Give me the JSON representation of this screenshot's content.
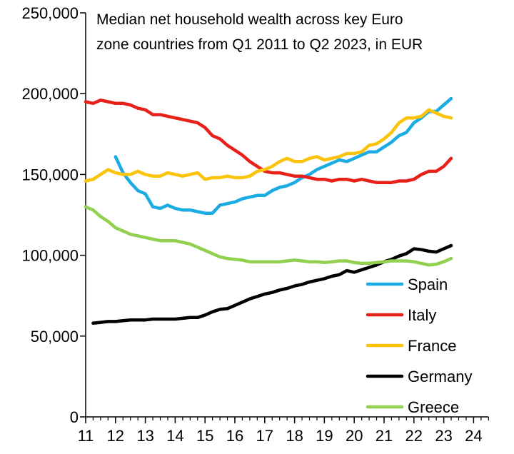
{
  "chart_data": {
    "type": "line",
    "title_lines": [
      "Median net household wealth across key Euro",
      "zone countries from Q1 2011 to Q2 2023, in EUR"
    ],
    "xlabel": "",
    "ylabel": "",
    "xlim": [
      11,
      24.5
    ],
    "ylim": [
      0,
      250000
    ],
    "x_ticks": [
      11,
      12,
      13,
      14,
      15,
      16,
      17,
      18,
      19,
      20,
      21,
      22,
      23,
      24
    ],
    "x_tick_labels": [
      "11",
      "12",
      "13",
      "14",
      "15",
      "16",
      "17",
      "18",
      "19",
      "20",
      "21",
      "22",
      "23",
      "24"
    ],
    "y_ticks": [
      0,
      50000,
      100000,
      150000,
      200000,
      250000
    ],
    "y_tick_labels": [
      "0",
      "50,000",
      "100,000",
      "150,000",
      "200,000",
      "250,000"
    ],
    "grid": false,
    "legend_position": "bottom-right",
    "series": [
      {
        "name": "Spain",
        "color": "#1AACE3",
        "points": [
          [
            12.0,
            161000
          ],
          [
            12.25,
            151000
          ],
          [
            12.5,
            145000
          ],
          [
            12.75,
            140000
          ],
          [
            13.0,
            138000
          ],
          [
            13.25,
            130000
          ],
          [
            13.5,
            129000
          ],
          [
            13.75,
            131000
          ],
          [
            14.0,
            129000
          ],
          [
            14.25,
            128000
          ],
          [
            14.5,
            128000
          ],
          [
            14.75,
            127000
          ],
          [
            15.0,
            126000
          ],
          [
            15.25,
            126000
          ],
          [
            15.5,
            131000
          ],
          [
            15.75,
            132000
          ],
          [
            16.0,
            133000
          ],
          [
            16.25,
            135000
          ],
          [
            16.5,
            136000
          ],
          [
            16.75,
            137000
          ],
          [
            17.0,
            137000
          ],
          [
            17.25,
            140000
          ],
          [
            17.5,
            142000
          ],
          [
            17.75,
            143000
          ],
          [
            18.0,
            145000
          ],
          [
            18.25,
            148000
          ],
          [
            18.5,
            150000
          ],
          [
            18.75,
            153000
          ],
          [
            19.0,
            155000
          ],
          [
            19.25,
            157000
          ],
          [
            19.5,
            159000
          ],
          [
            19.75,
            158000
          ],
          [
            20.0,
            160000
          ],
          [
            20.25,
            162000
          ],
          [
            20.5,
            164000
          ],
          [
            20.75,
            164000
          ],
          [
            21.0,
            167000
          ],
          [
            21.25,
            170000
          ],
          [
            21.5,
            174000
          ],
          [
            21.75,
            176000
          ],
          [
            22.0,
            182000
          ],
          [
            22.25,
            185000
          ],
          [
            22.5,
            189000
          ],
          [
            22.75,
            189000
          ],
          [
            23.0,
            193000
          ],
          [
            23.25,
            197000
          ]
        ]
      },
      {
        "name": "Italy",
        "color": "#E8201A",
        "points": [
          [
            11.0,
            195000
          ],
          [
            11.25,
            194000
          ],
          [
            11.5,
            196000
          ],
          [
            11.75,
            195000
          ],
          [
            12.0,
            194000
          ],
          [
            12.25,
            194000
          ],
          [
            12.5,
            193000
          ],
          [
            12.75,
            191000
          ],
          [
            13.0,
            190000
          ],
          [
            13.25,
            187000
          ],
          [
            13.5,
            187000
          ],
          [
            13.75,
            186000
          ],
          [
            14.0,
            185000
          ],
          [
            14.25,
            184000
          ],
          [
            14.5,
            183000
          ],
          [
            14.75,
            182000
          ],
          [
            15.0,
            179000
          ],
          [
            15.25,
            174000
          ],
          [
            15.5,
            172000
          ],
          [
            15.75,
            168000
          ],
          [
            16.0,
            165000
          ],
          [
            16.25,
            162000
          ],
          [
            16.5,
            158000
          ],
          [
            16.75,
            155000
          ],
          [
            17.0,
            152000
          ],
          [
            17.25,
            151000
          ],
          [
            17.5,
            151000
          ],
          [
            17.75,
            150000
          ],
          [
            18.0,
            149000
          ],
          [
            18.25,
            149000
          ],
          [
            18.5,
            148000
          ],
          [
            18.75,
            147000
          ],
          [
            19.0,
            147000
          ],
          [
            19.25,
            146000
          ],
          [
            19.5,
            147000
          ],
          [
            19.75,
            147000
          ],
          [
            20.0,
            146000
          ],
          [
            20.25,
            147000
          ],
          [
            20.5,
            146000
          ],
          [
            20.75,
            145000
          ],
          [
            21.0,
            145000
          ],
          [
            21.25,
            145000
          ],
          [
            21.5,
            146000
          ],
          [
            21.75,
            146000
          ],
          [
            22.0,
            147000
          ],
          [
            22.25,
            150000
          ],
          [
            22.5,
            152000
          ],
          [
            22.75,
            152000
          ],
          [
            23.0,
            155000
          ],
          [
            23.25,
            160000
          ]
        ]
      },
      {
        "name": "France",
        "color": "#FCC30B",
        "points": [
          [
            11.0,
            146000
          ],
          [
            11.25,
            147000
          ],
          [
            11.5,
            150000
          ],
          [
            11.75,
            153000
          ],
          [
            12.0,
            151000
          ],
          [
            12.25,
            150000
          ],
          [
            12.5,
            150000
          ],
          [
            12.75,
            152000
          ],
          [
            13.0,
            150000
          ],
          [
            13.25,
            149000
          ],
          [
            13.5,
            149000
          ],
          [
            13.75,
            151000
          ],
          [
            14.0,
            150000
          ],
          [
            14.25,
            149000
          ],
          [
            14.5,
            150000
          ],
          [
            14.75,
            151000
          ],
          [
            15.0,
            147000
          ],
          [
            15.25,
            148000
          ],
          [
            15.5,
            148000
          ],
          [
            15.75,
            149000
          ],
          [
            16.0,
            148000
          ],
          [
            16.25,
            148000
          ],
          [
            16.5,
            149000
          ],
          [
            16.75,
            152000
          ],
          [
            17.0,
            153000
          ],
          [
            17.25,
            155000
          ],
          [
            17.5,
            158000
          ],
          [
            17.75,
            160000
          ],
          [
            18.0,
            158000
          ],
          [
            18.25,
            158000
          ],
          [
            18.5,
            160000
          ],
          [
            18.75,
            161000
          ],
          [
            19.0,
            159000
          ],
          [
            19.25,
            160000
          ],
          [
            19.5,
            161000
          ],
          [
            19.75,
            163000
          ],
          [
            20.0,
            163000
          ],
          [
            20.25,
            164000
          ],
          [
            20.5,
            168000
          ],
          [
            20.75,
            169000
          ],
          [
            21.0,
            172000
          ],
          [
            21.25,
            176000
          ],
          [
            21.5,
            182000
          ],
          [
            21.75,
            185000
          ],
          [
            22.0,
            185000
          ],
          [
            22.25,
            186000
          ],
          [
            22.5,
            190000
          ],
          [
            22.75,
            188000
          ],
          [
            23.0,
            186000
          ],
          [
            23.25,
            185000
          ]
        ]
      },
      {
        "name": "Germany",
        "color": "#000000",
        "points": [
          [
            11.25,
            58000
          ],
          [
            11.5,
            58500
          ],
          [
            11.75,
            59000
          ],
          [
            12.0,
            59000
          ],
          [
            12.25,
            59500
          ],
          [
            12.5,
            60000
          ],
          [
            12.75,
            60000
          ],
          [
            13.0,
            60000
          ],
          [
            13.25,
            60500
          ],
          [
            13.5,
            60500
          ],
          [
            13.75,
            60500
          ],
          [
            14.0,
            60500
          ],
          [
            14.25,
            61000
          ],
          [
            14.5,
            61500
          ],
          [
            14.75,
            61500
          ],
          [
            15.0,
            63000
          ],
          [
            15.25,
            65000
          ],
          [
            15.5,
            66500
          ],
          [
            15.75,
            67000
          ],
          [
            16.0,
            69000
          ],
          [
            16.25,
            71000
          ],
          [
            16.5,
            73000
          ],
          [
            16.75,
            74500
          ],
          [
            17.0,
            76000
          ],
          [
            17.25,
            77000
          ],
          [
            17.5,
            78500
          ],
          [
            17.75,
            79500
          ],
          [
            18.0,
            81000
          ],
          [
            18.25,
            82000
          ],
          [
            18.5,
            83500
          ],
          [
            18.75,
            84500
          ],
          [
            19.0,
            85500
          ],
          [
            19.25,
            87000
          ],
          [
            19.5,
            88000
          ],
          [
            19.75,
            90500
          ],
          [
            20.0,
            89500
          ],
          [
            20.25,
            91000
          ],
          [
            20.5,
            92500
          ],
          [
            20.75,
            94000
          ],
          [
            21.0,
            96000
          ],
          [
            21.25,
            97500
          ],
          [
            21.5,
            99500
          ],
          [
            21.75,
            101000
          ],
          [
            22.0,
            104000
          ],
          [
            22.25,
            103500
          ],
          [
            22.5,
            102500
          ],
          [
            22.75,
            102000
          ],
          [
            23.0,
            104000
          ],
          [
            23.25,
            106000
          ]
        ]
      },
      {
        "name": "Greece",
        "color": "#92D050",
        "points": [
          [
            11.0,
            130000
          ],
          [
            11.25,
            128000
          ],
          [
            11.5,
            124000
          ],
          [
            11.75,
            121000
          ],
          [
            12.0,
            117000
          ],
          [
            12.25,
            115000
          ],
          [
            12.5,
            113000
          ],
          [
            12.75,
            112000
          ],
          [
            13.0,
            111000
          ],
          [
            13.25,
            110000
          ],
          [
            13.5,
            109000
          ],
          [
            13.75,
            109000
          ],
          [
            14.0,
            109000
          ],
          [
            14.25,
            108000
          ],
          [
            14.5,
            107000
          ],
          [
            14.75,
            105000
          ],
          [
            15.0,
            103000
          ],
          [
            15.25,
            101000
          ],
          [
            15.5,
            99000
          ],
          [
            15.75,
            98000
          ],
          [
            16.0,
            97500
          ],
          [
            16.25,
            97000
          ],
          [
            16.5,
            96000
          ],
          [
            16.75,
            96000
          ],
          [
            17.0,
            96000
          ],
          [
            17.25,
            96000
          ],
          [
            17.5,
            96000
          ],
          [
            17.75,
            96500
          ],
          [
            18.0,
            97000
          ],
          [
            18.25,
            96500
          ],
          [
            18.5,
            96000
          ],
          [
            18.75,
            96000
          ],
          [
            19.0,
            95500
          ],
          [
            19.25,
            96000
          ],
          [
            19.5,
            96500
          ],
          [
            19.75,
            96500
          ],
          [
            20.0,
            95500
          ],
          [
            20.25,
            95000
          ],
          [
            20.5,
            95000
          ],
          [
            20.75,
            95500
          ],
          [
            21.0,
            96000
          ],
          [
            21.25,
            96500
          ],
          [
            21.5,
            96500
          ],
          [
            21.75,
            96500
          ],
          [
            22.0,
            96000
          ],
          [
            22.25,
            95000
          ],
          [
            22.5,
            94000
          ],
          [
            22.75,
            94500
          ],
          [
            23.0,
            96000
          ],
          [
            23.25,
            98000
          ]
        ]
      }
    ]
  }
}
